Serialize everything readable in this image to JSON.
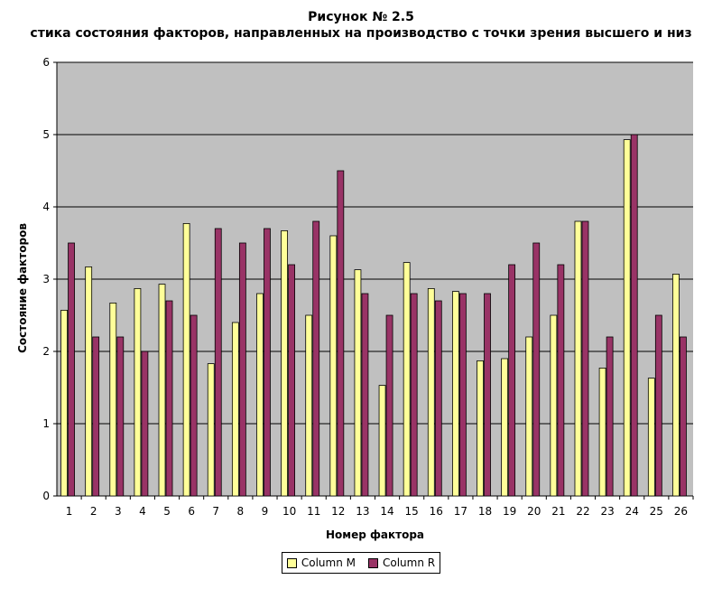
{
  "chart_data": {
    "type": "bar",
    "title": "Рисунок № 2.5",
    "subtitle": "стика состояния факторов, направленных на производство с точки зрения высшего и низ",
    "xlabel": "Номер фактора",
    "ylabel": "Состояние факторов",
    "ylim": [
      0,
      6
    ],
    "yticks": [
      0,
      1,
      2,
      3,
      4,
      5,
      6
    ],
    "grid": true,
    "legend_position": "bottom",
    "categories": [
      "1",
      "2",
      "3",
      "4",
      "5",
      "6",
      "7",
      "8",
      "9",
      "10",
      "11",
      "12",
      "13",
      "14",
      "15",
      "16",
      "17",
      "18",
      "19",
      "20",
      "21",
      "22",
      "23",
      "24",
      "25",
      "26"
    ],
    "series": [
      {
        "name": "Column M",
        "color": "#ffff99",
        "values": [
          2.57,
          3.17,
          2.67,
          2.87,
          2.93,
          3.77,
          1.83,
          2.4,
          2.8,
          3.67,
          2.5,
          3.6,
          3.13,
          1.53,
          3.23,
          2.87,
          2.83,
          1.87,
          1.9,
          2.2,
          2.5,
          3.8,
          1.77,
          4.93,
          1.63,
          3.07
        ]
      },
      {
        "name": "Column R",
        "color": "#993366",
        "values": [
          3.5,
          2.2,
          2.2,
          2.0,
          2.7,
          2.5,
          3.7,
          3.5,
          3.7,
          3.2,
          3.8,
          4.5,
          2.8,
          2.5,
          2.8,
          2.7,
          2.8,
          2.8,
          3.2,
          3.5,
          3.2,
          3.8,
          2.2,
          5.0,
          2.5,
          2.2
        ]
      }
    ]
  }
}
